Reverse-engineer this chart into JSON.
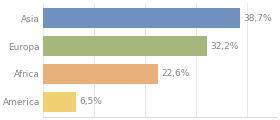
{
  "categories": [
    "Asia",
    "Europa",
    "Africa",
    "America"
  ],
  "values": [
    38.7,
    32.2,
    22.6,
    6.5
  ],
  "labels": [
    "38,7%",
    "32,2%",
    "22,6%",
    "6,5%"
  ],
  "bar_colors": [
    "#7191c0",
    "#a3b87a",
    "#e8b07a",
    "#f0d070"
  ],
  "background_color": "#ffffff",
  "xlim": [
    0,
    46
  ],
  "label_fontsize": 6.5,
  "category_fontsize": 6.5,
  "bar_height": 0.72,
  "figsize": [
    2.8,
    1.2
  ],
  "dpi": 100,
  "label_color": "#888888",
  "grid_color": "#e0e0e0",
  "bottom_spine_color": "#cccccc"
}
